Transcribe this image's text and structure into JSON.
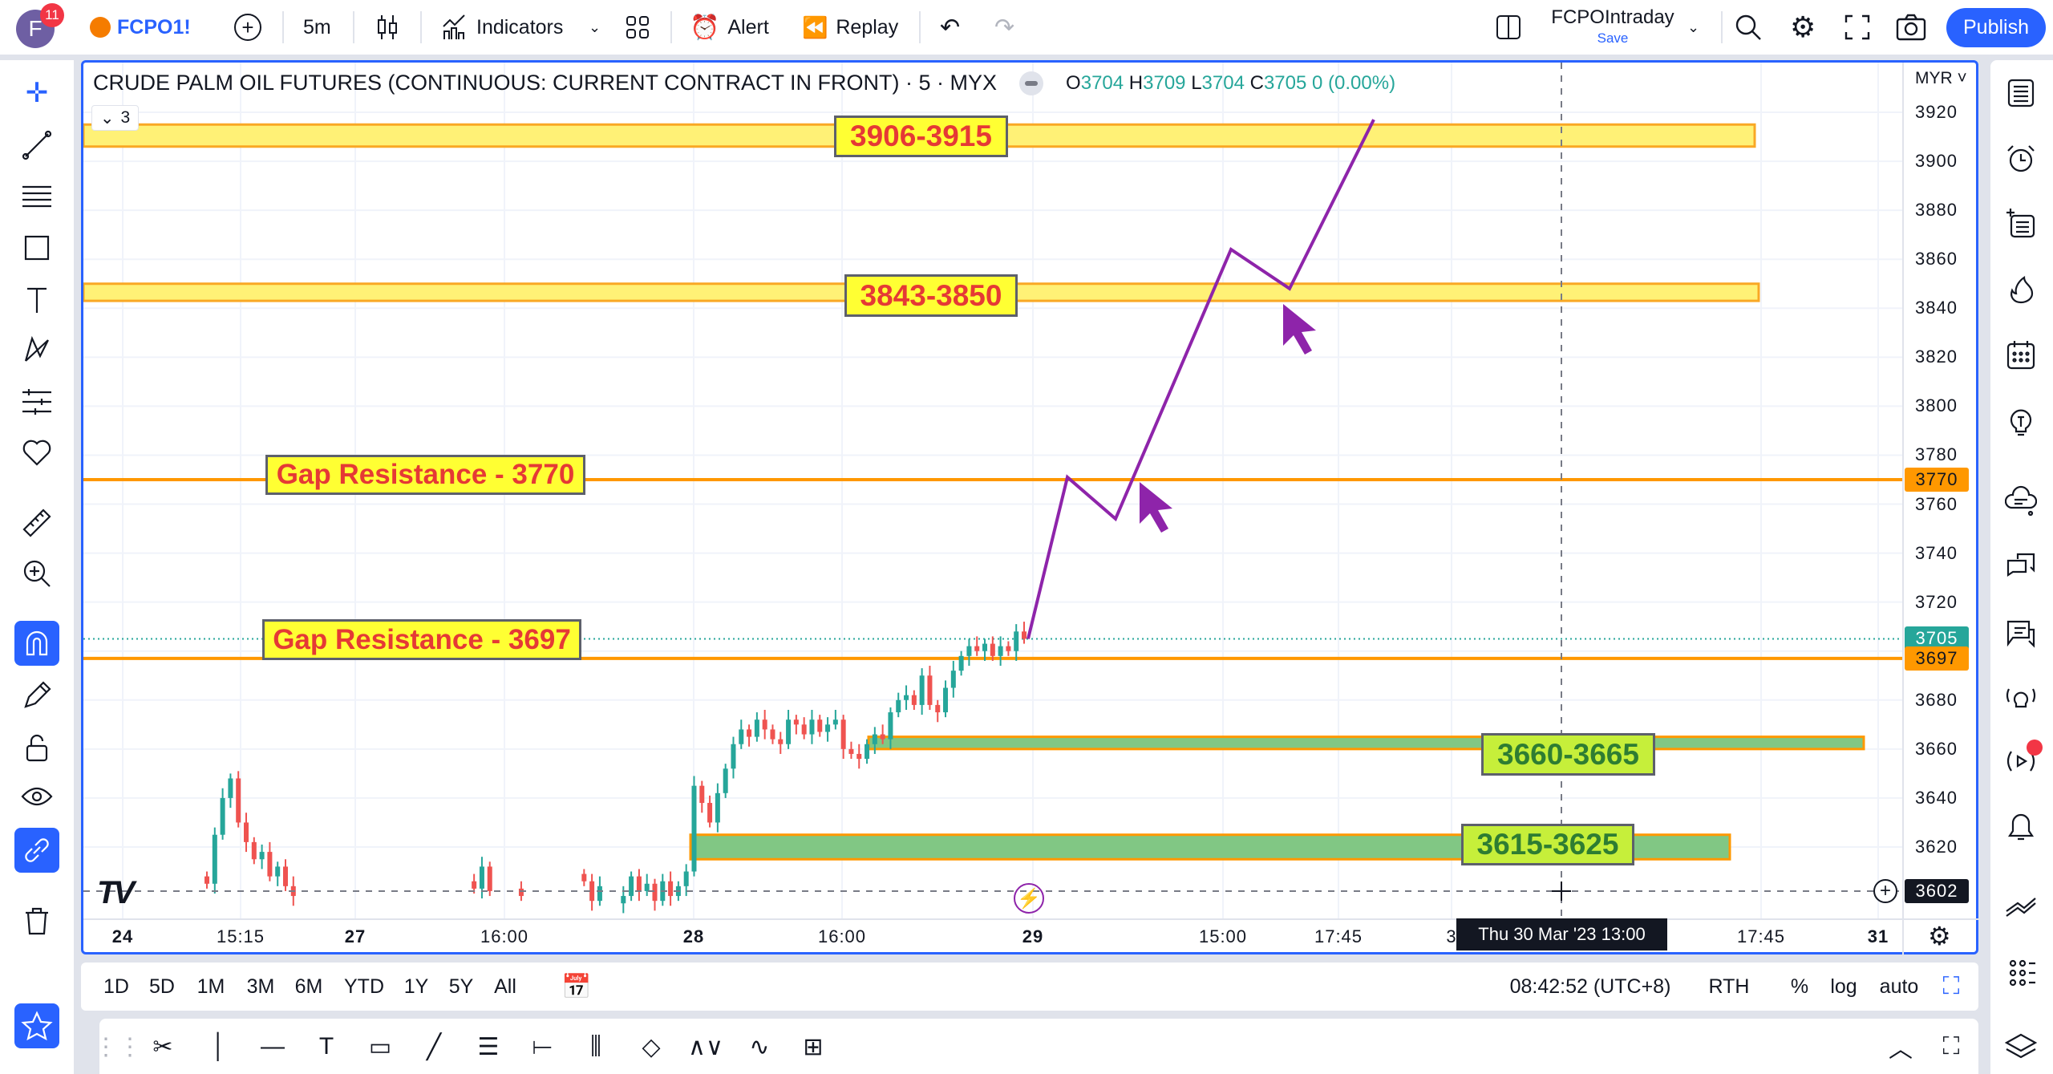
{
  "topbar": {
    "avatar_letter": "F",
    "notification_count": "11",
    "symbol": "FCPO1!",
    "interval": "5m",
    "indicators_label": "Indicators",
    "alert_label": "Alert",
    "replay_label": "Replay",
    "layout_name": "FCPOIntraday",
    "save_label": "Save",
    "publish_label": "Publish"
  },
  "legend": {
    "title": "CRUDE PALM OIL FUTURES (CONTINUOUS: CURRENT CONTRACT IN FRONT) · 5 · MYX",
    "o_label": "O",
    "o": "3704",
    "h_label": "H",
    "h": "3709",
    "l_label": "L",
    "l": "3704",
    "c_label": "C",
    "c": "3705",
    "change": "0 (0.00%)",
    "collapse_count": "3"
  },
  "price_axis": {
    "currency": "MYR",
    "ticks": [
      "3920",
      "3900",
      "3880",
      "3860",
      "3840",
      "3820",
      "3800",
      "3780",
      "3760",
      "3740",
      "3720",
      "3680",
      "3660",
      "3640",
      "3620"
    ],
    "markers": [
      {
        "value": "3770",
        "color": "#ff9800"
      },
      {
        "value": "3705",
        "color": "#26a69a"
      },
      {
        "value": "3697",
        "color": "#ff9800"
      },
      {
        "value": "3602",
        "color": "#131722"
      }
    ]
  },
  "time_axis": {
    "labels": [
      "24",
      "15:15",
      "27",
      "16:00",
      "28",
      "16:00",
      "29",
      "15:00",
      "17:45",
      "3",
      "17:45",
      "31"
    ],
    "crosshair_label": "Thu 30 Mar '23  13:00"
  },
  "chart_data": {
    "type": "candlestick",
    "ylim": [
      3595,
      3925
    ],
    "up_color": "#26a69a",
    "down_color": "#ef5350",
    "closes": [
      3605,
      3625,
      3640,
      3648,
      3630,
      3622,
      3615,
      3618,
      3608,
      3612,
      3604,
      3600,
      null,
      null,
      null,
      null,
      null,
      null,
      null,
      null,
      null,
      null,
      null,
      null,
      null,
      null,
      null,
      null,
      null,
      null,
      null,
      null,
      null,
      null,
      3603,
      3612,
      3602,
      null,
      null,
      null,
      3600,
      null,
      null,
      null,
      null,
      null,
      null,
      null,
      3606,
      3598,
      3604,
      null,
      null,
      3600,
      3608,
      3602,
      3605,
      3598,
      3606,
      3600,
      3604,
      3610,
      3645,
      3638,
      3630,
      3642,
      3652,
      3662,
      3668,
      3665,
      3672,
      3668,
      3664,
      3662,
      3672,
      3670,
      3666,
      3672,
      3667,
      3670,
      3672,
      3660,
      3658,
      3656,
      3662,
      3666,
      3664,
      3675,
      3680,
      3682,
      3678,
      3690,
      3678,
      3675,
      3685,
      3692,
      3698,
      3702,
      3700,
      3703,
      3698,
      3702,
      3700,
      3708,
      3705
    ],
    "last_price": 3705,
    "crosshair_price": 3602,
    "drawings": {
      "zones": [
        {
          "label": "3906-3915",
          "low": 3906,
          "high": 3915,
          "fill": "#fff176",
          "border": "#f9a825"
        },
        {
          "label": "3843-3850",
          "low": 3843,
          "high": 3850,
          "fill": "#fff176",
          "border": "#f9a825"
        },
        {
          "label": "3660-3665",
          "low": 3660,
          "high": 3665,
          "fill": "#81c784",
          "border": "#ff9800"
        },
        {
          "label": "3615-3625",
          "low": 3615,
          "high": 3625,
          "fill": "#81c784",
          "border": "#ff9800"
        }
      ],
      "lines": [
        {
          "label": "Gap Resistance - 3770",
          "price": 3770,
          "color": "#ff9800"
        },
        {
          "label": "Gap Resistance - 3697",
          "price": 3697,
          "color": "#ff9800"
        }
      ],
      "projection_path_prices": [
        3705,
        3771,
        3754,
        3864,
        3848,
        3917
      ],
      "path_color": "#8e24aa"
    }
  },
  "bottombar": {
    "ranges": [
      "1D",
      "5D",
      "1M",
      "3M",
      "6M",
      "YTD",
      "1Y",
      "5Y",
      "All"
    ],
    "clock": "08:42:52 (UTC+8)",
    "session": "RTH",
    "percent": "%",
    "log": "log",
    "auto": "auto"
  }
}
